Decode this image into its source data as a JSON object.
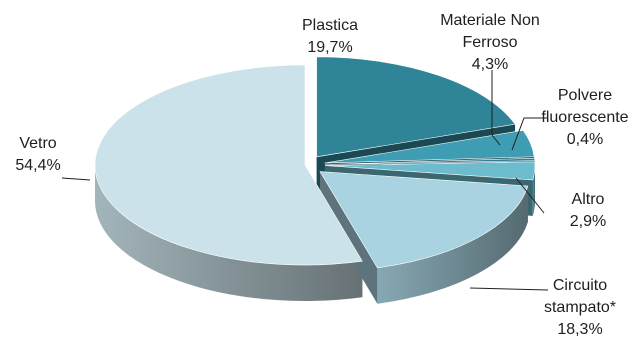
{
  "chart_data": {
    "type": "pie",
    "title": "",
    "categories": [
      "Plastica",
      "Materiale Non Ferroso",
      "Polvere fluorescente",
      "Altro",
      "Circuito stampato*",
      "Vetro"
    ],
    "values": [
      19.7,
      4.3,
      0.4,
      2.9,
      18.3,
      54.4
    ],
    "slices": [
      {
        "name": "Plastica",
        "label_lines": [
          "Plastica",
          "19,7%"
        ],
        "value": 19.7,
        "color": "#2f8597",
        "exploded": true
      },
      {
        "name": "Materiale Non Ferroso",
        "label_lines": [
          "Materiale Non",
          "Ferroso",
          "4,3%"
        ],
        "value": 4.3,
        "color": "#3f9db3",
        "exploded": true
      },
      {
        "name": "Polvere fluorescente",
        "label_lines": [
          "Polvere",
          "fluorescente",
          "0,4%"
        ],
        "value": 0.4,
        "color": "#2f7f95",
        "exploded": true
      },
      {
        "name": "Altro",
        "label_lines": [
          "Altro",
          "2,9%"
        ],
        "value": 2.9,
        "color": "#6cbccd",
        "exploded": true
      },
      {
        "name": "Circuito stampato*",
        "label_lines": [
          "Circuito",
          "stampato*",
          "18,3%"
        ],
        "value": 18.3,
        "color": "#a9d3e1",
        "exploded": true
      },
      {
        "name": "Vetro",
        "label_lines": [
          "Vetro",
          "54,4%"
        ],
        "value": 54.4,
        "color": "#cce2ea",
        "exploded": false
      }
    ],
    "style": "3d-exploded-pie"
  }
}
